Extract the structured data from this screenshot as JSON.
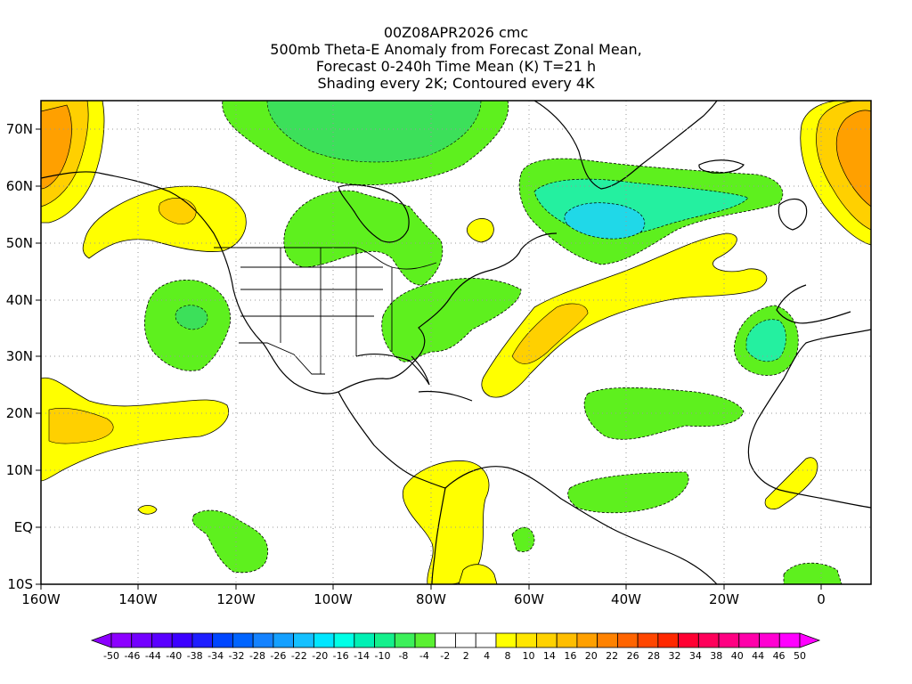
{
  "title": {
    "line1": "00Z08APR2026 cmc",
    "line2": "500mb Theta-E Anomaly from Forecast Zonal Mean,",
    "line3": "Forecast 0-240h Time Mean (K) T=21 h",
    "line4": "Shading every 2K; Contoured every 4K"
  },
  "map": {
    "lon_range": [
      -160,
      10
    ],
    "lat_range": [
      -10,
      75
    ],
    "lon_labels": [
      "160W",
      "140W",
      "120W",
      "100W",
      "80W",
      "60W",
      "40W",
      "20W",
      "0"
    ],
    "lat_labels": [
      "70N",
      "60N",
      "50N",
      "40N",
      "30N",
      "20N",
      "10N",
      "EQ",
      "10S"
    ],
    "colors": {
      "green": "#5ef01e",
      "green_dark": "#3ce05a",
      "cyan_green": "#24f0a0",
      "cyan": "#20d8e8",
      "yellow": "#ffff00",
      "gold": "#ffd000",
      "orange": "#ffa000"
    }
  },
  "colorbar": {
    "labels": [
      "-50",
      "-46",
      "-44",
      "-40",
      "-38",
      "-34",
      "-32",
      "-28",
      "-26",
      "-22",
      "-20",
      "-16",
      "-14",
      "-10",
      "-8",
      "-4",
      "-2",
      "2",
      "4",
      "8",
      "10",
      "14",
      "16",
      "20",
      "22",
      "26",
      "28",
      "32",
      "34",
      "38",
      "40",
      "44",
      "46",
      "50"
    ],
    "colors": [
      "#8c00ff",
      "#7300ff",
      "#5a00ff",
      "#3c00ff",
      "#1e1eff",
      "#0046ff",
      "#0064ff",
      "#1482ff",
      "#14a0ff",
      "#14c0ff",
      "#00e6ff",
      "#00ffe6",
      "#00f0b4",
      "#14f08c",
      "#3cf05a",
      "#5af032",
      "#ffffff",
      "#ffffff",
      "#ffffff",
      "#ffff00",
      "#ffe600",
      "#ffd200",
      "#ffbe00",
      "#ffa000",
      "#ff8200",
      "#ff6400",
      "#ff4600",
      "#ff2800",
      "#ff0032",
      "#ff005a",
      "#ff0082",
      "#ff00aa",
      "#ff00d2",
      "#ff00ff"
    ]
  }
}
